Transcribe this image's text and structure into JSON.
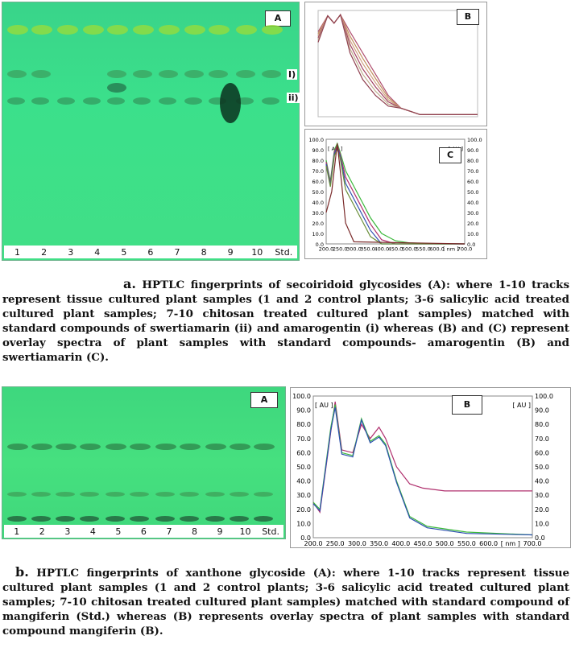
{
  "fig_a": {
    "plate_label": "A",
    "lanes": [
      "1",
      "2",
      "3",
      "4",
      "5",
      "6",
      "7",
      "8",
      "9",
      "10",
      "Std."
    ],
    "band_labels": [
      "I)",
      "ii)"
    ],
    "spec_b": {
      "label": "B"
    },
    "spec_c": {
      "label": "C",
      "unit_left": "[ AU ]",
      "unit_right": "[ AU ]",
      "y_ticks": [
        "100.0",
        "90.0",
        "80.0",
        "70.0",
        "60.0",
        "50.0",
        "40.0",
        "30.0",
        "20.0",
        "10.0",
        "0.0"
      ],
      "x_ticks": [
        "200.0",
        "250.0",
        "300.0",
        "350.0",
        "400.0",
        "450.0",
        "500.0",
        "550.0",
        "600.0",
        "[ nm ]",
        "700.0"
      ]
    },
    "caption_lead": "a.",
    "caption": " HPTLC fingerprints of secoiridoid glycosides (A): where 1-10 tracks represent tissue cultured plant samples (1 and 2 control plants; 3-6 salicylic acid treated cultured plant samples; 7-10 chitosan treated cultured plant samples) matched with standard compounds of swertiamarin (ii) and amarogentin (i) whereas (B) and (C) represent overlay spectra of plant samples with standard compounds- amarogentin (B) and swertiamarin (C)."
  },
  "fig_b": {
    "plate_label": "A",
    "lanes": [
      "1",
      "2",
      "3",
      "4",
      "5",
      "6",
      "7",
      "8",
      "9",
      "10",
      "Std."
    ],
    "spec": {
      "label": "B",
      "unit_left": "[ AU ]",
      "unit_right": "[ AU ]",
      "y_ticks": [
        "100.0",
        "90.0",
        "80.0",
        "70.0",
        "60.0",
        "50.0",
        "40.0",
        "30.0",
        "20.0",
        "10.0",
        "0.0"
      ],
      "x_ticks": [
        "200.0",
        "250.0",
        "300.0",
        "350.0",
        "400.0",
        "450.0",
        "500.0",
        "550.0",
        "600.0",
        "[ nm ]",
        "700.0"
      ]
    },
    "caption_lead": "b.",
    "caption": " HPTLC fingerprints of xanthone glycoside (A): where 1-10 tracks represent tissue cultured plant samples (1 and 2 control plants; 3-6 salicylic acid treated cultured plant samples; 7-10 chitosan treated cultured plant samples) matched with standard compound of mangiferin (Std.) whereas (B) represents overlay spectra of plant samples with standard compound mangiferin (B)."
  },
  "colors": {
    "plate_green": "#3ddc86",
    "spectrum_green": "#3bb83b",
    "spectrum_magenta": "#b0306e",
    "spectrum_blue": "#2d4fb0"
  }
}
